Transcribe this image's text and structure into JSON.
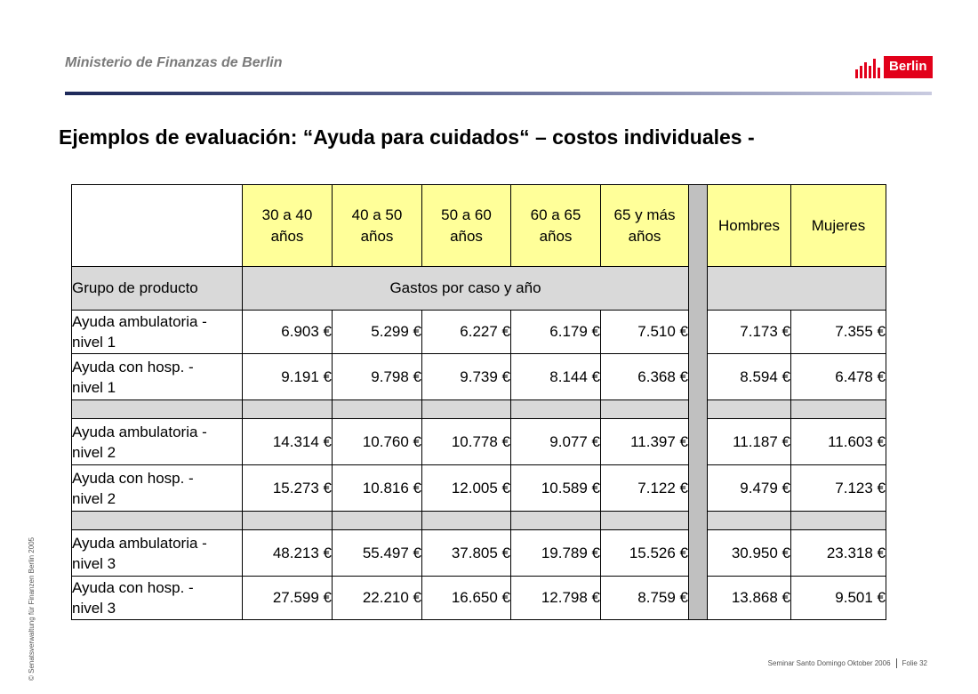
{
  "header": {
    "ministry": "Ministerio de Finanzas de Berlin",
    "logo_text": "Berlin",
    "accent_color": "#e2001a"
  },
  "title": "Ejemplos de evaluación: “Ayuda para cuidados“ – costos individuales -",
  "table": {
    "age_headers": [
      {
        "line1": "30 a 40",
        "line2": "años"
      },
      {
        "line1": "40 a 50",
        "line2": "años"
      },
      {
        "line1": "50 a 60",
        "line2": "años"
      },
      {
        "line1": "60 a 65",
        "line2": "años"
      },
      {
        "line1": "65 y más",
        "line2": "años"
      }
    ],
    "gender_headers": [
      "Hombres",
      "Mujeres"
    ],
    "group_label": "Grupo de producto",
    "spending_label": "Gastos por caso y año",
    "rows": [
      {
        "line1": "Ayuda ambulatoria -",
        "line2": "nivel 1",
        "values": [
          "6.903 €",
          "5.299 €",
          "6.227 €",
          "6.179 €",
          "7.510 €"
        ],
        "gender": [
          "7.173 €",
          "7.355 €"
        ]
      },
      {
        "line1": "Ayuda con hosp. -",
        "line2": "nivel 1",
        "values": [
          "9.191 €",
          "9.798 €",
          "9.739 €",
          "8.144 €",
          "6.368 €"
        ],
        "gender": [
          "8.594 €",
          "6.478 €"
        ]
      },
      {
        "line1": "Ayuda ambulatoria -",
        "line2": "nivel 2",
        "values": [
          "14.314 €",
          "10.760 €",
          "10.778 €",
          "9.077 €",
          "11.397 €"
        ],
        "gender": [
          "11.187 €",
          "11.603 €"
        ]
      },
      {
        "line1": "Ayuda con hosp. -",
        "line2": "nivel 2",
        "values": [
          "15.273 €",
          "10.816 €",
          "12.005 €",
          "10.589 €",
          "7.122 €"
        ],
        "gender": [
          "9.479 €",
          "7.123 €"
        ]
      },
      {
        "line1": "Ayuda ambulatoria -",
        "line2": "nivel 3",
        "values": [
          "48.213 €",
          "55.497 €",
          "37.805 €",
          "19.789 €",
          "15.526 €"
        ],
        "gender": [
          "30.950 €",
          "23.318 €"
        ]
      },
      {
        "line1": "Ayuda con hosp. -",
        "line2": "nivel 3",
        "values": [
          "27.599 €",
          "22.210 €",
          "16.650 €",
          "12.798 €",
          "8.759 €"
        ],
        "gender": [
          "13.868 €",
          "9.501 €"
        ]
      }
    ]
  },
  "side_text": "© Senatsverwaltung für Finanzen Berlin 2005",
  "footer": {
    "event": "Seminar Santo Domingo Oktober 2006",
    "slide": "Folie 32"
  }
}
